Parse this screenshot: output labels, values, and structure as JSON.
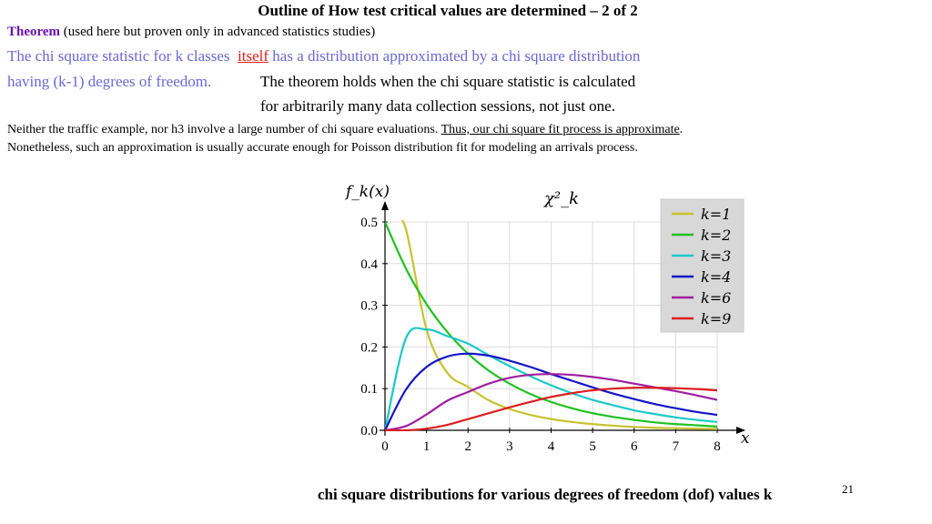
{
  "slide": {
    "title": "Outline of How test critical values are determined – 2 of 2",
    "theorem_word": "Theorem",
    "theorem_rest": " (used here but proven only in advanced statistics studies)",
    "blue_line1_a": "The chi square statistic for k classes  ",
    "itself_word": "itself",
    "blue_line1_b": " has a distribution approximated by a chi square distribution",
    "blue_line2": "having (k-1) degrees of freedom.",
    "black_line1": "The theorem holds when the chi square statistic is calculated",
    "black_line2": "for arbitrarily many data collection sessions, not just one.",
    "note1_a": "Neither the traffic example, nor h3 involve a large number of chi square evaluations. ",
    "note1_underlined": "Thus, our chi square fit process is approximate",
    "note1_b": ".",
    "note2": "Nonetheless, such an approximation is usually accurate enough for  Poisson distribution fit for modeling an arrivals process.",
    "caption": "chi square distributions for various degrees of freedom (dof) values k",
    "page_number": "21"
  },
  "chart_data": {
    "type": "line",
    "ylabel": "f_k(x)",
    "title": "χ²_k",
    "xlabel": "x",
    "xlim": [
      0,
      8
    ],
    "ylim": [
      0,
      0.5
    ],
    "x_ticks": [
      "0",
      "1",
      "2",
      "3",
      "4",
      "5",
      "6",
      "7",
      "8"
    ],
    "y_ticks": [
      "0.0",
      "0.1",
      "0.2",
      "0.3",
      "0.4",
      "0.5"
    ],
    "grid": true,
    "legend_position": "top-right",
    "x": [
      0,
      0.5,
      1,
      1.5,
      2,
      2.5,
      3,
      3.5,
      4,
      4.5,
      5,
      5.5,
      6,
      6.5,
      7,
      7.5,
      8
    ],
    "series": [
      {
        "name": "k=1",
        "color": "#c8c22e",
        "values": [
          null,
          0.484,
          0.242,
          0.138,
          0.104,
          0.072,
          0.051,
          0.037,
          0.027,
          0.02,
          0.015,
          0.011,
          0.008,
          0.006,
          0.005,
          0.004,
          0.003
        ]
      },
      {
        "name": "k=2",
        "color": "#1fc21f",
        "values": [
          0.5,
          0.389,
          0.303,
          0.236,
          0.184,
          0.143,
          0.112,
          0.087,
          0.068,
          0.053,
          0.041,
          0.032,
          0.025,
          0.019,
          0.015,
          0.012,
          0.009
        ]
      },
      {
        "name": "k=3",
        "color": "#1cc8c8",
        "values": [
          0,
          0.22,
          0.242,
          0.226,
          0.208,
          0.18,
          0.154,
          0.13,
          0.108,
          0.089,
          0.073,
          0.06,
          0.048,
          0.039,
          0.031,
          0.025,
          0.02
        ]
      },
      {
        "name": "k=4",
        "color": "#1414c8",
        "values": [
          0,
          0.097,
          0.152,
          0.177,
          0.184,
          0.179,
          0.167,
          0.152,
          0.135,
          0.119,
          0.103,
          0.088,
          0.075,
          0.063,
          0.053,
          0.044,
          0.037
        ]
      },
      {
        "name": "k=6",
        "color": "#a01ea0",
        "values": [
          0,
          0.01,
          0.038,
          0.071,
          0.092,
          0.112,
          0.126,
          0.133,
          0.135,
          0.133,
          0.128,
          0.121,
          0.112,
          0.103,
          0.094,
          0.084,
          0.073
        ]
      },
      {
        "name": "k=9",
        "color": "#dc1e1e",
        "values": [
          0,
          0.0,
          0.004,
          0.013,
          0.027,
          0.041,
          0.055,
          0.068,
          0.08,
          0.089,
          0.096,
          0.1,
          0.102,
          0.102,
          0.101,
          0.099,
          0.096
        ]
      }
    ]
  }
}
